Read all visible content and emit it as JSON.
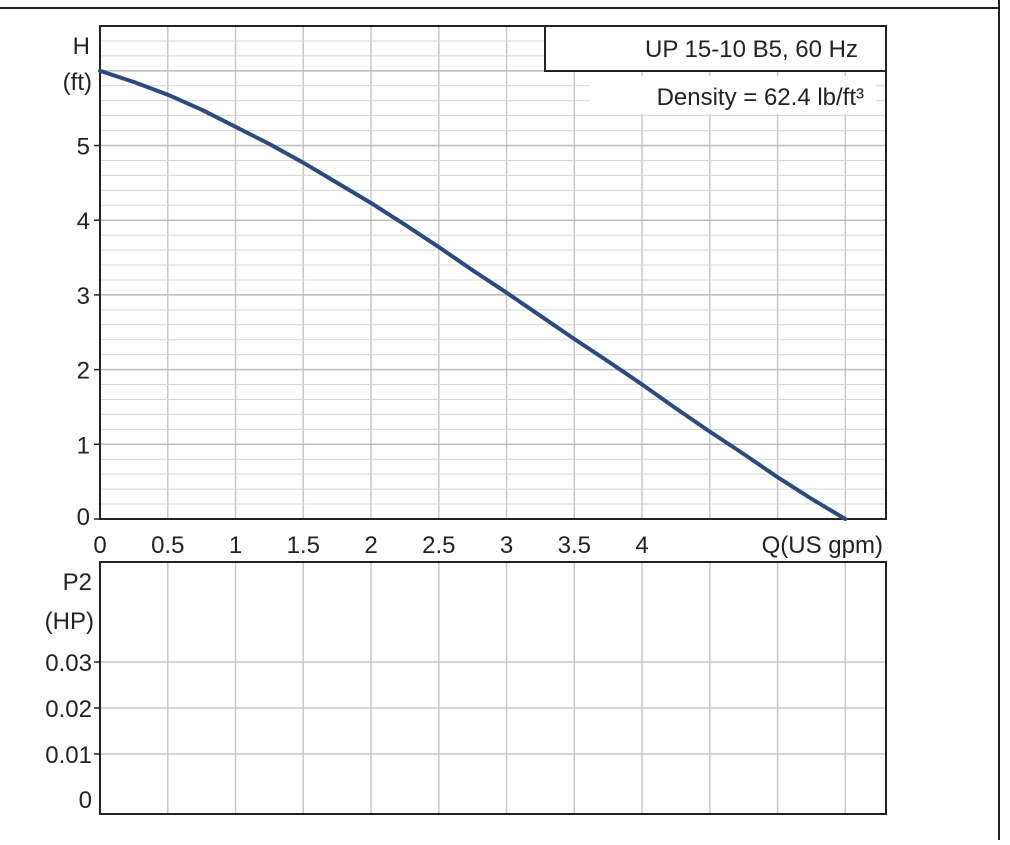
{
  "chart_data": [
    {
      "type": "line",
      "title": "",
      "legend_box": {
        "line1": "UP 15-10 B5, 60 Hz",
        "line2": "Density = 62.4 lb/ft³",
        "placement": "top-right"
      },
      "ylabel_top": "H",
      "ylabel_unit": "(ft)",
      "xlabel": "Q(US gpm)",
      "x_ticks": [
        "0",
        "0.5",
        "1",
        "1.5",
        "2",
        "2.5",
        "3",
        "3.5",
        "4"
      ],
      "y_ticks": [
        "0",
        "1",
        "2",
        "3",
        "4",
        "5"
      ],
      "xlim": [
        0,
        5.8
      ],
      "ylim": [
        0,
        6.6
      ],
      "grid": true,
      "series": [
        {
          "color": "#2b4a7e",
          "x": [
            0,
            0.25,
            0.5,
            0.75,
            1.0,
            1.25,
            1.5,
            1.75,
            2.0,
            2.25,
            2.5,
            2.75,
            3.0,
            3.25,
            3.5,
            3.75,
            4.0,
            4.25,
            4.5,
            4.75,
            5.0,
            5.25,
            5.5
          ],
          "y": [
            6.0,
            5.85,
            5.68,
            5.48,
            5.25,
            5.02,
            4.77,
            4.5,
            4.23,
            3.94,
            3.64,
            3.33,
            3.03,
            2.72,
            2.41,
            2.11,
            1.8,
            1.48,
            1.17,
            0.87,
            0.56,
            0.27,
            0.0
          ]
        }
      ]
    },
    {
      "type": "line",
      "title": "",
      "ylabel_top": "P2",
      "ylabel_unit": "(HP)",
      "y_ticks": [
        "0",
        "0.01",
        "0.02",
        "0.03"
      ],
      "xlim": [
        0,
        5.8
      ],
      "grid": true,
      "series": []
    }
  ]
}
